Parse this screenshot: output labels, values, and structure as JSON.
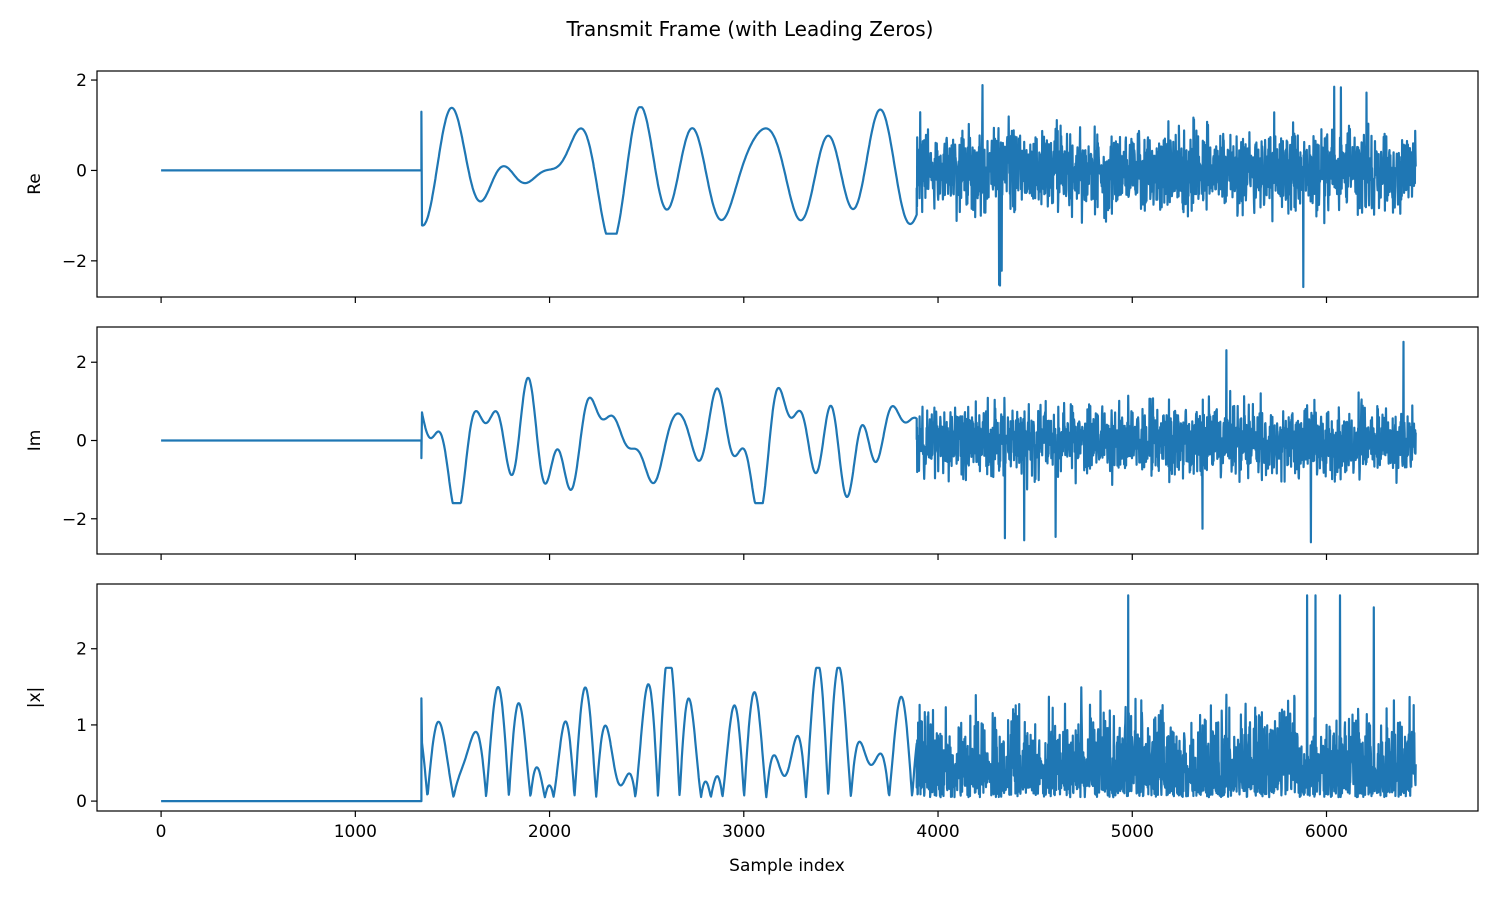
{
  "title": "Transmit Frame (with Leading Zeros)",
  "xlabel": "Sample index",
  "line_color": "#1f77b4",
  "chart_data": [
    {
      "type": "line",
      "ylabel": "Re",
      "xlim": [
        -330,
        6780
      ],
      "ylim": [
        -2.8,
        2.2
      ],
      "xticks": [
        0,
        1000,
        2000,
        3000,
        4000,
        5000,
        6000
      ],
      "xtick_labels_visible": false,
      "yticks": [
        -2,
        0,
        2
      ],
      "ytick_labels": [
        "−2",
        "0",
        "2"
      ],
      "segments": [
        {
          "kind": "flat",
          "x": [
            0,
            1340
          ],
          "y": 0
        },
        {
          "kind": "slow",
          "x": [
            1340,
            3890
          ],
          "y_range": [
            -1.4,
            1.4
          ],
          "first_value": 1.3
        },
        {
          "kind": "noise",
          "x": [
            3890,
            6460
          ],
          "y_range": [
            -2.6,
            2.0
          ]
        }
      ]
    },
    {
      "type": "line",
      "ylabel": "Im",
      "xlim": [
        -330,
        6780
      ],
      "ylim": [
        -2.9,
        2.9
      ],
      "xticks": [
        0,
        1000,
        2000,
        3000,
        4000,
        5000,
        6000
      ],
      "xtick_labels_visible": false,
      "yticks": [
        -2,
        0,
        2
      ],
      "ytick_labels": [
        "−2",
        "0",
        "2"
      ],
      "segments": [
        {
          "kind": "flat",
          "x": [
            0,
            1340
          ],
          "y": 0
        },
        {
          "kind": "slow",
          "x": [
            1340,
            3890
          ],
          "y_range": [
            -1.6,
            1.6
          ],
          "first_value": -0.45
        },
        {
          "kind": "noise",
          "x": [
            3890,
            6460
          ],
          "y_range": [
            -2.65,
            2.65
          ]
        }
      ]
    },
    {
      "type": "line",
      "ylabel": "|x|",
      "xlim": [
        -330,
        6780
      ],
      "ylim": [
        -0.13,
        2.85
      ],
      "xticks": [
        0,
        1000,
        2000,
        3000,
        4000,
        5000,
        6000
      ],
      "xtick_labels": [
        "0",
        "1000",
        "2000",
        "3000",
        "4000",
        "5000",
        "6000"
      ],
      "xtick_labels_visible": true,
      "yticks": [
        0,
        1,
        2
      ],
      "ytick_labels": [
        "0",
        "1",
        "2"
      ],
      "segments": [
        {
          "kind": "flat",
          "x": [
            0,
            1340
          ],
          "y": 0
        },
        {
          "kind": "slow_abs",
          "x": [
            1340,
            3890
          ],
          "y_range": [
            0,
            1.75
          ],
          "first_value": 1.35
        },
        {
          "kind": "noise_abs",
          "x": [
            3890,
            6460
          ],
          "y_range": [
            0.02,
            2.7
          ]
        }
      ]
    }
  ]
}
